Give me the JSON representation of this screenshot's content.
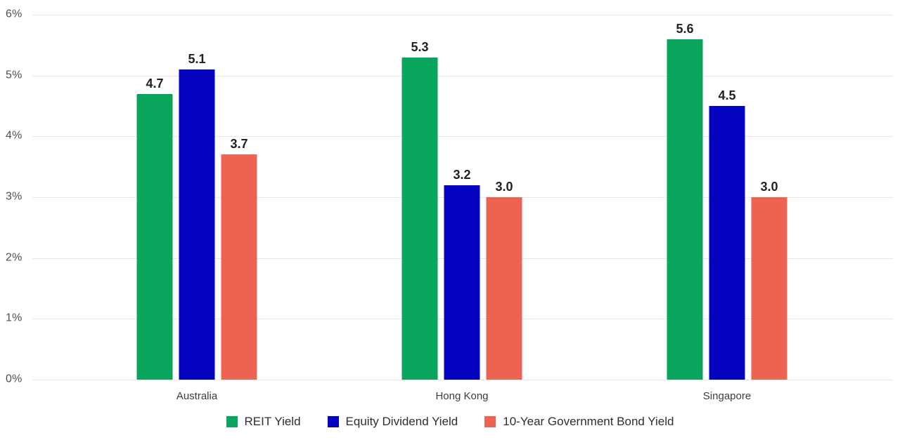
{
  "chart_data": {
    "type": "bar",
    "title": "",
    "categories": [
      "Australia",
      "Hong Kong",
      "Singapore"
    ],
    "series": [
      {
        "name": "REIT Yield",
        "color": "#0aa55c",
        "values": [
          4.7,
          5.3,
          5.6
        ]
      },
      {
        "name": "Equity Dividend Yield",
        "color": "#0303c0",
        "values": [
          5.1,
          3.2,
          4.5
        ]
      },
      {
        "name": "10-Year Government Bond Yield",
        "color": "#ed6352",
        "values": [
          3.7,
          3.0,
          3.0
        ]
      }
    ],
    "value_label_decimals": 1,
    "y_axis": {
      "min": 0,
      "max": 6,
      "tick_step": 1,
      "tick_labels": [
        "0%",
        "1%",
        "2%",
        "3%",
        "4%",
        "5%",
        "6%"
      ],
      "unit": "%"
    },
    "xlabel": "",
    "ylabel": "",
    "grid": true,
    "gridline_color": "#e6e6e6",
    "legend_position": "bottom"
  }
}
